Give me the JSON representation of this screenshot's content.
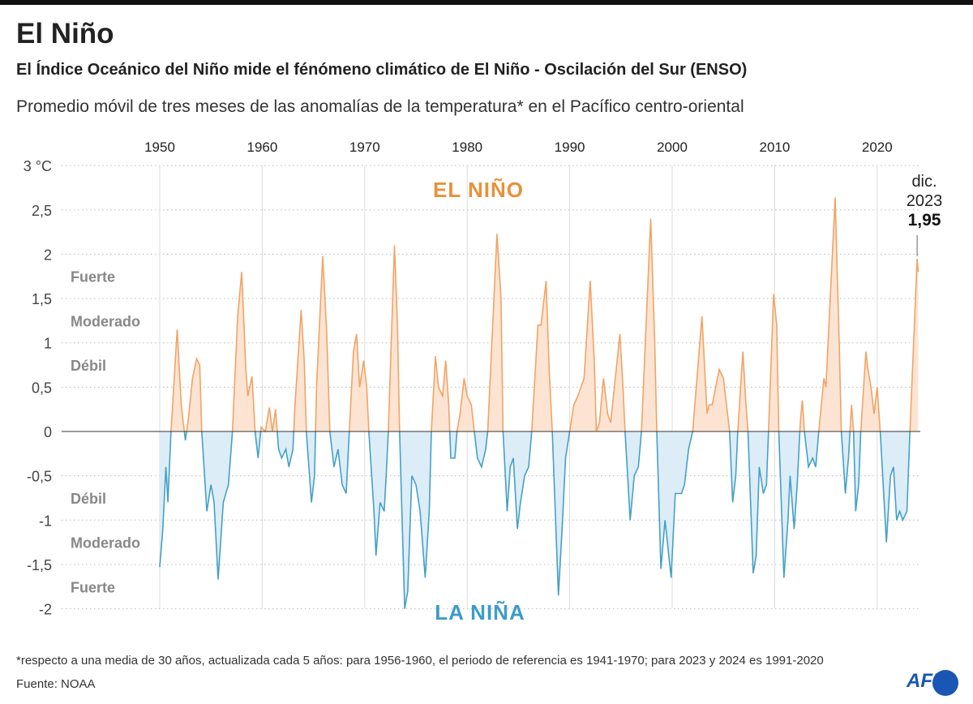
{
  "header": {
    "title": "El Niño",
    "subtitle": "El Índice Oceánico del Niño mide el fénómeno climático de El Niño - Oscilación del Sur (ENSO)",
    "description": "Promedio móvil de tres meses de las anomalías de la temperatura* en el Pacífico centro-oriental"
  },
  "footer": {
    "note": "*respecto a una media de 30 años, actualizada cada 5 años: para 1956-1960, el periodo de referencia es 1941-1970; para 2023 y 2024 es 1991-2020",
    "source": "Fuente: NOAA",
    "logo": "AFP"
  },
  "chart_data": {
    "type": "area",
    "x_ticks": [
      "1950",
      "1960",
      "1970",
      "1980",
      "1990",
      "2000",
      "2010",
      "2020"
    ],
    "y_ticks": [
      {
        "v": 3,
        "label": "3 °C"
      },
      {
        "v": 2.5,
        "label": "2,5"
      },
      {
        "v": 2,
        "label": "2"
      },
      {
        "v": 1.5,
        "label": "1,5"
      },
      {
        "v": 1,
        "label": "1"
      },
      {
        "v": 0.5,
        "label": "0,5"
      },
      {
        "v": 0,
        "label": "0"
      },
      {
        "v": -0.5,
        "label": "-0,5"
      },
      {
        "v": -1,
        "label": "-1"
      },
      {
        "v": -1.5,
        "label": "-1,5"
      },
      {
        "v": -2,
        "label": "-2"
      }
    ],
    "xlim": [
      1950,
      2024.1
    ],
    "ylim": [
      -2,
      3
    ],
    "grid": "dotted horizontal, solid vertical per decade",
    "zone_labels": {
      "el_nino": "EL NIÑO",
      "la_nina": "LA NIÑA",
      "pos": [
        {
          "v": 1.75,
          "label": "Fuerte"
        },
        {
          "v": 1.25,
          "label": "Moderado"
        },
        {
          "v": 0.75,
          "label": "Débil"
        }
      ],
      "neg": [
        {
          "v": -0.75,
          "label": "Débil"
        },
        {
          "v": -1.25,
          "label": "Moderado"
        },
        {
          "v": -1.75,
          "label": "Fuerte"
        }
      ]
    },
    "annotation": {
      "x": 2023.9,
      "y": 1.95,
      "line1": "dic.",
      "line2": "2023",
      "value": "1,95"
    },
    "colors": {
      "positive_line": "#f0a466",
      "positive_fill": "#fde4d2",
      "negative_line": "#45a0c6",
      "negative_fill": "#dcedf8",
      "el_nino_label": "#e8913a",
      "la_nina_label": "#3c9cc8",
      "zone_text": "#888888"
    },
    "points": [
      [
        1950.0,
        -1.53
      ],
      [
        1950.3,
        -1.1
      ],
      [
        1950.6,
        -0.4
      ],
      [
        1950.8,
        -0.8
      ],
      [
        1951.1,
        0
      ],
      [
        1951.7,
        1.15
      ],
      [
        1952.1,
        0.3
      ],
      [
        1952.5,
        -0.1
      ],
      [
        1952.8,
        0.15
      ],
      [
        1953.2,
        0.6
      ],
      [
        1953.6,
        0.82
      ],
      [
        1953.9,
        0.75
      ],
      [
        1954.1,
        0
      ],
      [
        1954.6,
        -0.9
      ],
      [
        1955.0,
        -0.6
      ],
      [
        1955.3,
        -0.8
      ],
      [
        1955.7,
        -1.67
      ],
      [
        1956.2,
        -0.8
      ],
      [
        1956.7,
        -0.6
      ],
      [
        1957.1,
        0
      ],
      [
        1957.6,
        1.3
      ],
      [
        1958.0,
        1.8
      ],
      [
        1958.4,
        0.7
      ],
      [
        1958.6,
        0.4
      ],
      [
        1959.0,
        0.62
      ],
      [
        1959.3,
        0
      ],
      [
        1959.6,
        -0.3
      ],
      [
        1959.9,
        0.05
      ],
      [
        1960.3,
        0
      ],
      [
        1960.7,
        0.27
      ],
      [
        1961.0,
        0
      ],
      [
        1961.3,
        0.25
      ],
      [
        1961.6,
        -0.2
      ],
      [
        1961.9,
        -0.3
      ],
      [
        1962.3,
        -0.2
      ],
      [
        1962.6,
        -0.4
      ],
      [
        1963.0,
        -0.2
      ],
      [
        1963.2,
        0.3
      ],
      [
        1963.8,
        1.37
      ],
      [
        1964.1,
        0.8
      ],
      [
        1964.3,
        0
      ],
      [
        1964.8,
        -0.8
      ],
      [
        1965.1,
        -0.5
      ],
      [
        1965.3,
        0.5
      ],
      [
        1965.9,
        1.98
      ],
      [
        1966.3,
        1.1
      ],
      [
        1966.6,
        0
      ],
      [
        1967.0,
        -0.4
      ],
      [
        1967.4,
        -0.2
      ],
      [
        1967.8,
        -0.6
      ],
      [
        1968.2,
        -0.7
      ],
      [
        1968.5,
        0
      ],
      [
        1968.9,
        0.9
      ],
      [
        1969.2,
        1.1
      ],
      [
        1969.5,
        0.5
      ],
      [
        1969.9,
        0.8
      ],
      [
        1970.2,
        0.5
      ],
      [
        1970.4,
        0
      ],
      [
        1970.9,
        -0.9
      ],
      [
        1971.1,
        -1.4
      ],
      [
        1971.5,
        -0.8
      ],
      [
        1971.9,
        -0.9
      ],
      [
        1972.1,
        -0.5
      ],
      [
        1972.3,
        0
      ],
      [
        1972.9,
        2.1
      ],
      [
        1973.2,
        1.2
      ],
      [
        1973.4,
        0
      ],
      [
        1973.9,
        -2.0
      ],
      [
        1974.2,
        -1.8
      ],
      [
        1974.6,
        -0.5
      ],
      [
        1975.0,
        -0.6
      ],
      [
        1975.4,
        -0.9
      ],
      [
        1975.9,
        -1.65
      ],
      [
        1976.3,
        -0.9
      ],
      [
        1976.5,
        0
      ],
      [
        1976.9,
        0.85
      ],
      [
        1977.2,
        0.5
      ],
      [
        1977.6,
        0.4
      ],
      [
        1977.9,
        0.8
      ],
      [
        1978.2,
        0.3
      ],
      [
        1978.4,
        -0.3
      ],
      [
        1978.8,
        -0.3
      ],
      [
        1979.0,
        0
      ],
      [
        1979.3,
        0.2
      ],
      [
        1979.7,
        0.6
      ],
      [
        1980.0,
        0.4
      ],
      [
        1980.4,
        0.3
      ],
      [
        1980.7,
        0
      ],
      [
        1981.0,
        -0.3
      ],
      [
        1981.4,
        -0.4
      ],
      [
        1981.8,
        -0.2
      ],
      [
        1982.0,
        0
      ],
      [
        1982.9,
        2.23
      ],
      [
        1983.3,
        1.5
      ],
      [
        1983.5,
        0
      ],
      [
        1983.9,
        -0.9
      ],
      [
        1984.2,
        -0.4
      ],
      [
        1984.5,
        -0.3
      ],
      [
        1984.9,
        -1.1
      ],
      [
        1985.2,
        -0.8
      ],
      [
        1985.6,
        -0.5
      ],
      [
        1986.0,
        -0.4
      ],
      [
        1986.3,
        0
      ],
      [
        1986.9,
        1.2
      ],
      [
        1987.2,
        1.2
      ],
      [
        1987.7,
        1.7
      ],
      [
        1988.0,
        0.7
      ],
      [
        1988.3,
        0
      ],
      [
        1988.9,
        -1.85
      ],
      [
        1989.3,
        -1.0
      ],
      [
        1989.6,
        -0.3
      ],
      [
        1990.0,
        0
      ],
      [
        1990.4,
        0.3
      ],
      [
        1990.8,
        0.4
      ],
      [
        1991.4,
        0.6
      ],
      [
        1992.0,
        1.7
      ],
      [
        1992.4,
        0.8
      ],
      [
        1992.6,
        0
      ],
      [
        1992.9,
        0.1
      ],
      [
        1993.3,
        0.6
      ],
      [
        1993.7,
        0.2
      ],
      [
        1994.0,
        0.1
      ],
      [
        1994.9,
        1.1
      ],
      [
        1995.2,
        0.5
      ],
      [
        1995.4,
        0
      ],
      [
        1995.9,
        -1.0
      ],
      [
        1996.3,
        -0.5
      ],
      [
        1996.7,
        -0.4
      ],
      [
        1997.0,
        0
      ],
      [
        1997.9,
        2.4
      ],
      [
        1998.3,
        1.0
      ],
      [
        1998.5,
        0
      ],
      [
        1998.9,
        -1.55
      ],
      [
        1999.3,
        -1.0
      ],
      [
        1999.9,
        -1.65
      ],
      [
        2000.3,
        -0.7
      ],
      [
        2000.9,
        -0.7
      ],
      [
        2001.2,
        -0.6
      ],
      [
        2001.6,
        -0.2
      ],
      [
        2002.0,
        0
      ],
      [
        2002.9,
        1.3
      ],
      [
        2003.4,
        0.2
      ],
      [
        2003.6,
        0.3
      ],
      [
        2003.9,
        0.3
      ],
      [
        2004.6,
        0.7
      ],
      [
        2005.0,
        0.6
      ],
      [
        2005.3,
        0.3
      ],
      [
        2005.6,
        0
      ],
      [
        2005.9,
        -0.8
      ],
      [
        2006.2,
        -0.5
      ],
      [
        2006.4,
        0
      ],
      [
        2006.9,
        0.9
      ],
      [
        2007.2,
        0.3
      ],
      [
        2007.4,
        0
      ],
      [
        2007.9,
        -1.6
      ],
      [
        2008.2,
        -1.4
      ],
      [
        2008.5,
        -0.4
      ],
      [
        2008.9,
        -0.7
      ],
      [
        2009.2,
        -0.6
      ],
      [
        2009.4,
        0
      ],
      [
        2009.9,
        1.55
      ],
      [
        2010.2,
        1.2
      ],
      [
        2010.4,
        0
      ],
      [
        2010.9,
        -1.65
      ],
      [
        2011.3,
        -1.0
      ],
      [
        2011.5,
        -0.5
      ],
      [
        2011.9,
        -1.1
      ],
      [
        2012.2,
        -0.6
      ],
      [
        2012.5,
        0.1
      ],
      [
        2012.7,
        0.35
      ],
      [
        2012.9,
        0
      ],
      [
        2013.3,
        -0.4
      ],
      [
        2013.7,
        -0.3
      ],
      [
        2014.0,
        -0.4
      ],
      [
        2014.3,
        0
      ],
      [
        2014.8,
        0.6
      ],
      [
        2015.0,
        0.5
      ],
      [
        2015.9,
        2.64
      ],
      [
        2016.3,
        1.0
      ],
      [
        2016.5,
        0
      ],
      [
        2016.9,
        -0.7
      ],
      [
        2017.2,
        -0.3
      ],
      [
        2017.5,
        0.3
      ],
      [
        2017.7,
        0
      ],
      [
        2017.9,
        -0.9
      ],
      [
        2018.2,
        -0.6
      ],
      [
        2018.4,
        0
      ],
      [
        2018.9,
        0.9
      ],
      [
        2019.1,
        0.7
      ],
      [
        2019.4,
        0.5
      ],
      [
        2019.7,
        0.2
      ],
      [
        2020.0,
        0.5
      ],
      [
        2020.3,
        0
      ],
      [
        2020.9,
        -1.25
      ],
      [
        2021.3,
        -0.5
      ],
      [
        2021.6,
        -0.4
      ],
      [
        2021.9,
        -1.0
      ],
      [
        2022.2,
        -0.9
      ],
      [
        2022.5,
        -1.0
      ],
      [
        2022.9,
        -0.9
      ],
      [
        2023.2,
        0
      ],
      [
        2023.9,
        1.95
      ],
      [
        2024.0,
        1.8
      ]
    ]
  }
}
